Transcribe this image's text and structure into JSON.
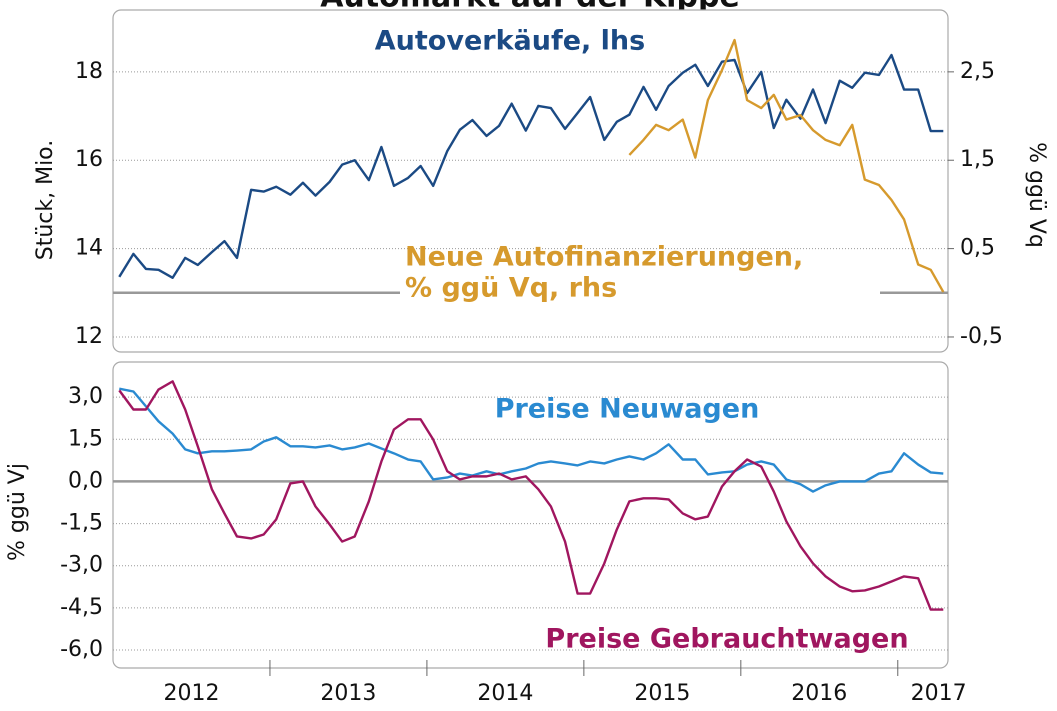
{
  "chart_data": [
    {
      "type": "line",
      "title": "Automarkt auf der Kippe",
      "ylabel": "Stück, Mio.",
      "y2label": "% ggü Vq",
      "xlim": [
        2012,
        2017.32
      ],
      "ylim": [
        11.66,
        19.4
      ],
      "yticks": [
        12,
        14,
        16,
        18
      ],
      "y2lim": [
        -0.67,
        3.2
      ],
      "y2ticks": [
        {
          "value": -0.5,
          "label": "-0,5"
        },
        {
          "value": 0.5,
          "label": "0,5"
        },
        {
          "value": 1.5,
          "label": "1,5"
        },
        {
          "value": 2.5,
          "label": "2,5"
        }
      ],
      "grid": true,
      "ref_line": {
        "value": 0,
        "axis": "y2"
      },
      "x": [
        2012.04,
        2012.13,
        2012.21,
        2012.29,
        2012.38,
        2012.46,
        2012.54,
        2012.63,
        2012.71,
        2012.79,
        2012.88,
        2012.96,
        2013.04,
        2013.13,
        2013.21,
        2013.29,
        2013.38,
        2013.46,
        2013.54,
        2013.63,
        2013.71,
        2013.79,
        2013.88,
        2013.96,
        2014.04,
        2014.13,
        2014.21,
        2014.29,
        2014.38,
        2014.46,
        2014.54,
        2014.63,
        2014.71,
        2014.79,
        2014.88,
        2014.96,
        2015.04,
        2015.13,
        2015.21,
        2015.29,
        2015.38,
        2015.46,
        2015.54,
        2015.63,
        2015.71,
        2015.79,
        2015.88,
        2015.96,
        2016.04,
        2016.13,
        2016.21,
        2016.29,
        2016.38,
        2016.46,
        2016.54,
        2016.63,
        2016.71,
        2016.79,
        2016.88,
        2016.96,
        2017.04,
        2017.13,
        2017.21,
        2017.29
      ],
      "series": [
        {
          "name": "Autoverkäufe, lhs",
          "color": "#1b4a84",
          "values": [
            13.36,
            13.88,
            13.54,
            13.52,
            13.34,
            13.79,
            13.63,
            13.92,
            14.17,
            13.79,
            15.33,
            15.29,
            15.4,
            15.22,
            15.49,
            15.2,
            15.51,
            15.9,
            16.0,
            15.55,
            16.3,
            15.42,
            15.6,
            15.87,
            15.42,
            16.21,
            16.69,
            16.91,
            16.55,
            16.78,
            17.28,
            16.67,
            17.23,
            17.18,
            16.71,
            17.07,
            17.43,
            16.46,
            16.87,
            17.03,
            17.66,
            17.14,
            17.68,
            17.98,
            18.16,
            17.68,
            18.23,
            18.27,
            17.52,
            18.0,
            16.73,
            17.37,
            16.94,
            17.6,
            16.84,
            17.8,
            17.64,
            17.98,
            17.93,
            18.38,
            17.6,
            17.6,
            16.66,
            16.66
          ]
        },
        {
          "name": [
            "Neue Autofinanzierungen,",
            "% ggü Vq, rhs"
          ],
          "color": "#d69a2d",
          "axis": "y2",
          "x": [
            2015.29,
            2015.38,
            2015.46,
            2015.54,
            2015.63,
            2015.71,
            2015.79,
            2015.88,
            2015.96,
            2016.04,
            2016.13,
            2016.21,
            2016.29,
            2016.38,
            2016.46,
            2016.54,
            2016.63,
            2016.71,
            2016.79,
            2016.88,
            2016.96,
            2017.04,
            2017.13,
            2017.21,
            2017.29
          ],
          "values": [
            1.56,
            1.73,
            1.9,
            1.84,
            1.96,
            1.53,
            2.18,
            2.52,
            2.86,
            2.18,
            2.09,
            2.24,
            1.96,
            2.01,
            1.84,
            1.73,
            1.67,
            1.9,
            1.28,
            1.22,
            1.05,
            0.83,
            0.32,
            0.26,
            0.01
          ]
        }
      ]
    },
    {
      "type": "line",
      "ylabel": "% ggü Vj",
      "xlim": [
        2012,
        2017.32
      ],
      "ylim": [
        -6.64,
        4.25
      ],
      "yticks": [
        {
          "value": 3,
          "label": "3,0"
        },
        {
          "value": 1.5,
          "label": "1,5"
        },
        {
          "value": 0,
          "label": "0,0"
        },
        {
          "value": -1.5,
          "label": "-1,5"
        },
        {
          "value": -3,
          "label": "-3,0"
        },
        {
          "value": -4.5,
          "label": "-4,5"
        },
        {
          "value": -6,
          "label": "-6,0"
        }
      ],
      "xticks": [
        {
          "value": 2012.5,
          "label": "2012"
        },
        {
          "value": 2013.5,
          "label": "2013"
        },
        {
          "value": 2014.5,
          "label": "2014"
        },
        {
          "value": 2015.5,
          "label": "2015"
        },
        {
          "value": 2016.5,
          "label": "2016"
        },
        {
          "value": 2017.26,
          "label": "2017"
        }
      ],
      "grid": true,
      "ref_line": {
        "value": 0,
        "axis": "y"
      },
      "x": [
        2012.04,
        2012.13,
        2012.21,
        2012.29,
        2012.38,
        2012.46,
        2012.54,
        2012.63,
        2012.71,
        2012.79,
        2012.88,
        2012.96,
        2013.04,
        2013.13,
        2013.21,
        2013.29,
        2013.38,
        2013.46,
        2013.54,
        2013.63,
        2013.71,
        2013.79,
        2013.88,
        2013.96,
        2014.04,
        2014.13,
        2014.21,
        2014.29,
        2014.38,
        2014.46,
        2014.54,
        2014.63,
        2014.71,
        2014.79,
        2014.88,
        2014.96,
        2015.04,
        2015.13,
        2015.21,
        2015.29,
        2015.38,
        2015.46,
        2015.54,
        2015.63,
        2015.71,
        2015.79,
        2015.88,
        2015.96,
        2016.04,
        2016.13,
        2016.21,
        2016.29,
        2016.38,
        2016.46,
        2016.54,
        2016.63,
        2016.71,
        2016.79,
        2016.88,
        2016.96,
        2017.04,
        2017.13,
        2017.21,
        2017.29
      ],
      "series": [
        {
          "name": "Preise Neuwagen",
          "color": "#2a8ad1",
          "values": [
            3.3,
            3.2,
            2.67,
            2.14,
            1.7,
            1.14,
            1.0,
            1.07,
            1.07,
            1.1,
            1.14,
            1.42,
            1.57,
            1.25,
            1.25,
            1.21,
            1.28,
            1.14,
            1.21,
            1.35,
            1.17,
            1.0,
            0.78,
            0.71,
            0.07,
            0.14,
            0.28,
            0.21,
            0.36,
            0.25,
            0.36,
            0.46,
            0.64,
            0.71,
            0.64,
            0.57,
            0.71,
            0.64,
            0.78,
            0.89,
            0.78,
            1.0,
            1.32,
            0.78,
            0.78,
            0.25,
            0.32,
            0.36,
            0.6,
            0.71,
            0.6,
            0.07,
            -0.1,
            -0.36,
            -0.14,
            0,
            0,
            0,
            0.28,
            0.36,
            1.0,
            0.6,
            0.32,
            0.28
          ]
        },
        {
          "name": "Preise Gebrauchtwagen",
          "color": "#a0165f",
          "values": [
            3.24,
            2.56,
            2.56,
            3.27,
            3.56,
            2.56,
            1.25,
            -0.28,
            -1.14,
            -1.96,
            -2.03,
            -1.89,
            -1.35,
            -0.07,
            0,
            -0.89,
            -1.53,
            -2.14,
            -1.96,
            -0.71,
            0.71,
            1.85,
            2.21,
            2.21,
            1.49,
            0.36,
            0.07,
            0.18,
            0.18,
            0.28,
            0.07,
            0.18,
            -0.28,
            -0.89,
            -2.14,
            -3.99,
            -3.99,
            -2.92,
            -1.71,
            -0.71,
            -0.6,
            -0.6,
            -0.64,
            -1.14,
            -1.35,
            -1.25,
            -0.18,
            0.36,
            0.78,
            0.53,
            -0.36,
            -1.42,
            -2.31,
            -2.92,
            -3.38,
            -3.74,
            -3.91,
            -3.88,
            -3.74,
            -3.56,
            -3.38,
            -3.45,
            -4.56,
            -4.56
          ]
        }
      ]
    }
  ]
}
